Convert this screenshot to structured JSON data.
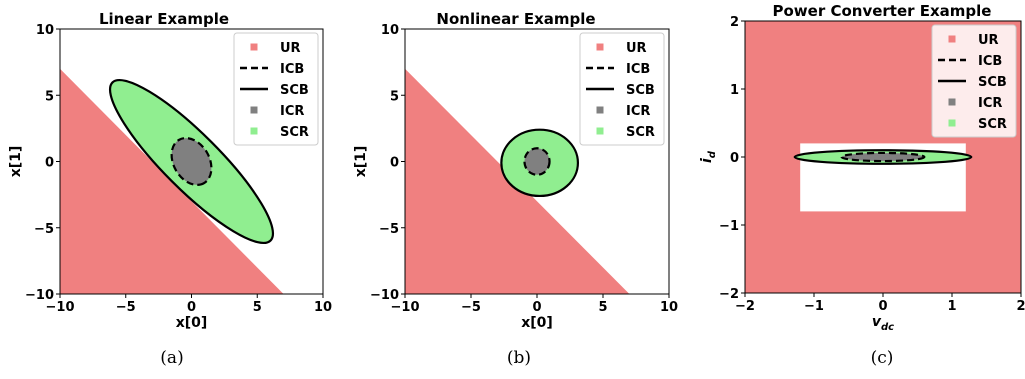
{
  "colors": {
    "unsafe": "#f08080",
    "safe": "#90ee90",
    "invariant": "#808080",
    "boundary": "#000000"
  },
  "legend_items": [
    {
      "key": "UR",
      "kind": "square",
      "color": "#f08080"
    },
    {
      "key": "ICB",
      "kind": "dashed"
    },
    {
      "key": "SCB",
      "kind": "solid"
    },
    {
      "key": "ICR",
      "kind": "square",
      "color": "#808080"
    },
    {
      "key": "SCR",
      "kind": "square",
      "color": "#90ee90"
    }
  ],
  "captions": [
    "(a)",
    "(b)",
    "(c)"
  ],
  "chart_data": [
    {
      "type": "region",
      "title": "Linear Example",
      "xlabel": "x[0]",
      "ylabel": "x[1]",
      "xlim": [
        -10,
        10
      ],
      "ylim": [
        -10,
        10
      ],
      "xticks": [
        -10,
        -5,
        0,
        5,
        10
      ],
      "yticks": [
        -10,
        -5,
        0,
        5,
        10
      ],
      "legend_position": "upper-right",
      "unsafe_region": {
        "type": "halfplane",
        "boundary": [
          [
            -10,
            7
          ],
          [
            7,
            -10
          ]
        ],
        "side": "below-left"
      },
      "scb_ellipse": {
        "center": [
          0,
          0
        ],
        "semi_major": 8.5,
        "semi_minor": 2.1,
        "angle_deg": -45
      },
      "icb_ellipse": {
        "center": [
          0,
          0
        ],
        "semi_major": 1.9,
        "semi_minor": 1.35,
        "angle_deg": -60
      }
    },
    {
      "type": "region",
      "title": "Nonlinear Example",
      "xlabel": "x[0]",
      "ylabel": "x[1]",
      "xlim": [
        -10,
        10
      ],
      "ylim": [
        -10,
        10
      ],
      "xticks": [
        -10,
        -5,
        0,
        5,
        10
      ],
      "yticks": [
        -10,
        -5,
        0,
        5,
        10
      ],
      "legend_position": "upper-right",
      "unsafe_region": {
        "type": "halfplane",
        "boundary": [
          [
            -10,
            7
          ],
          [
            7,
            -10
          ]
        ],
        "side": "below-left"
      },
      "scb_ellipse": {
        "center": [
          0.2,
          -0.1
        ],
        "semi_major": 2.9,
        "semi_minor": 2.5,
        "angle_deg": 0
      },
      "icb_ellipse": {
        "center": [
          0,
          0
        ],
        "semi_major": 0.95,
        "semi_minor": 1.0,
        "angle_deg": 0
      }
    },
    {
      "type": "region",
      "title": "Power Converter Example",
      "xlabel": "v",
      "xlabel_sub": "dc",
      "ylabel": "i",
      "ylabel_sub": "d",
      "xlim": [
        -2,
        2
      ],
      "ylim": [
        -2,
        2
      ],
      "xticks": [
        -2,
        -1,
        0,
        1,
        2
      ],
      "yticks": [
        -2,
        -1,
        0,
        1,
        2
      ],
      "legend_position": "upper-right",
      "unsafe_region": {
        "type": "complement_of_box",
        "safe_box": {
          "x": [
            -1.2,
            1.2
          ],
          "y": [
            -0.8,
            0.2
          ]
        }
      },
      "scb_ellipse": {
        "center": [
          0,
          0
        ],
        "semi_major": 1.28,
        "semi_minor": 0.1,
        "angle_deg": 0
      },
      "icb_ellipse": {
        "center": [
          0,
          0
        ],
        "semi_major": 0.6,
        "semi_minor": 0.06,
        "angle_deg": 0
      }
    }
  ]
}
